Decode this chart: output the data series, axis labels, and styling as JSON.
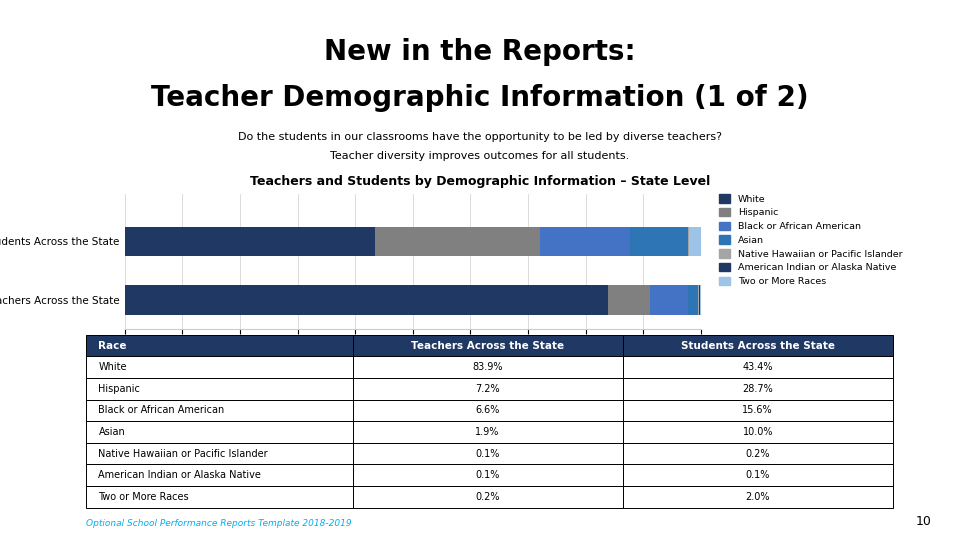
{
  "title_line1": "New in the Reports:",
  "title_line2": "Teacher Demographic Information (1 of 2)",
  "subtitle_line1": "Do the students in our classrooms have the opportunity to be led by diverse teachers?",
  "subtitle_line2": "Teacher diversity improves outcomes for all students.",
  "chart_title": "Teachers and Students by Demographic Information – State Level",
  "categories": [
    "Students Across the State",
    "Teachers Across the State"
  ],
  "races": [
    "White",
    "Hispanic",
    "Black or African American",
    "Asian",
    "Native Hawaiian or Pacific Islander",
    "American Indian or Alaska Native",
    "Two or More Races"
  ],
  "colors": [
    "#1F3864",
    "#808080",
    "#4472C4",
    "#2E75B6",
    "#A5A5A5",
    "#203864",
    "#9DC3E6"
  ],
  "students_data": [
    43.4,
    28.7,
    15.6,
    10.0,
    0.2,
    0.1,
    2.0
  ],
  "teachers_data": [
    83.9,
    7.2,
    6.6,
    1.9,
    0.1,
    0.1,
    0.2
  ],
  "table_header": [
    "Race",
    "Teachers Across the State",
    "Students Across the State"
  ],
  "table_races": [
    "White",
    "Hispanic",
    "Black or African American",
    "Asian",
    "Native Hawaiian or Pacific Islander",
    "American Indian or Alaska Native",
    "Two or More Races"
  ],
  "table_teachers": [
    "83.9%",
    "7.2%",
    "6.6%",
    "1.9%",
    "0.1%",
    "0.1%",
    "0.2%"
  ],
  "table_students": [
    "43.4%",
    "28.7%",
    "15.6%",
    "10.0%",
    "0.2%",
    "0.1%",
    "2.0%"
  ],
  "footer_text": "Optional School Performance Reports Template 2018-2019",
  "footer_color": "#00B0F0",
  "page_number": "10",
  "header_bg": "#1F3864",
  "header_text_color": "#FFFFFF",
  "background_color": "#FFFFFF"
}
